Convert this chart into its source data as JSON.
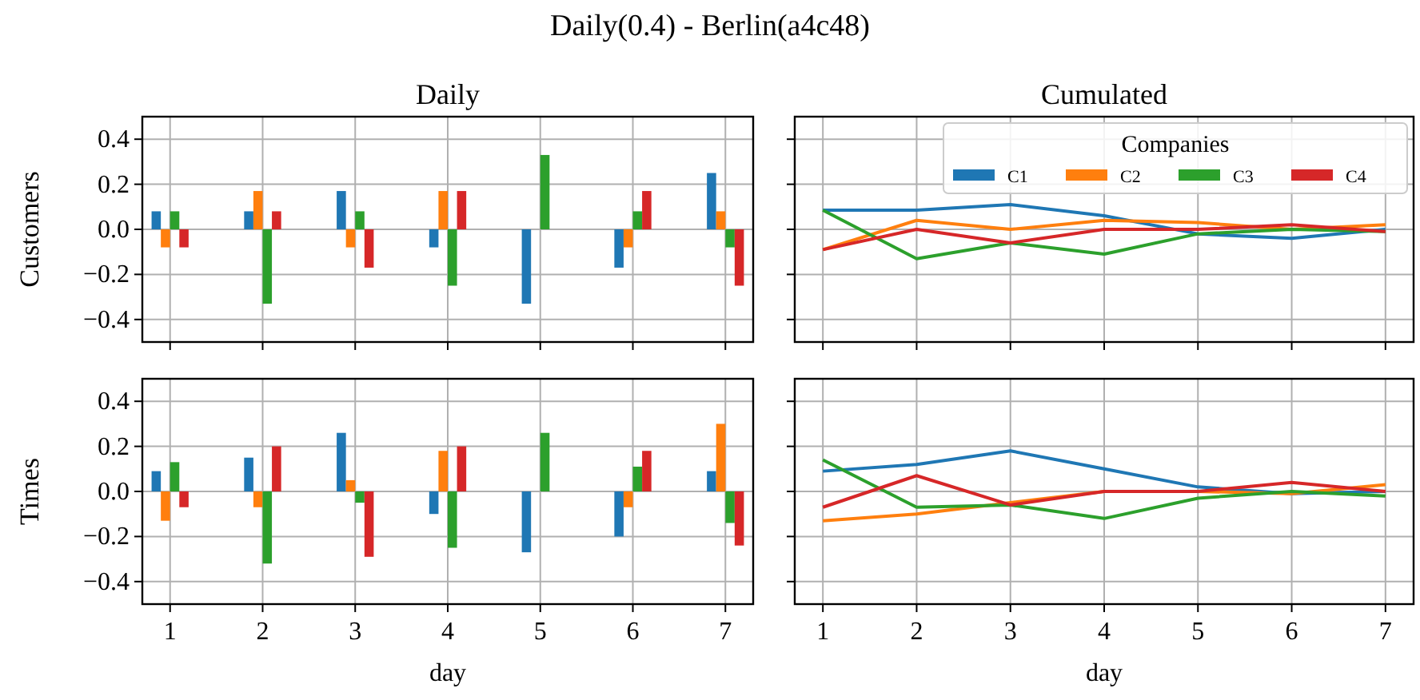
{
  "chart_data": [
    {
      "type": "bar",
      "title": "Daily",
      "annotations": [
        "Daily(0.4) - Berlin(a4c48)"
      ],
      "ylabel": "Customers",
      "x": [
        1,
        2,
        3,
        4,
        5,
        6,
        7
      ],
      "xlim": [
        0.7,
        7.3
      ],
      "xticks": [
        1,
        2,
        3,
        4,
        5,
        6,
        7
      ],
      "ylim": [
        -0.5,
        0.5
      ],
      "yticks": [
        {
          "value": -0.4,
          "label": "−0.4"
        },
        {
          "value": -0.2,
          "label": "−0.2"
        },
        {
          "value": 0,
          "label": "0.0"
        },
        {
          "value": 0.2,
          "label": "0.2"
        },
        {
          "value": 0.4,
          "label": "0.4"
        }
      ],
      "tick_labels": "y",
      "grid": true,
      "series": [
        {
          "color": "#1f77b4",
          "values": [
            0.08,
            0.08,
            0.17,
            -0.08,
            -0.33,
            -0.17,
            0.25
          ]
        },
        {
          "color": "#ff7f0e",
          "values": [
            -0.08,
            0.17,
            -0.08,
            0.17,
            0,
            -0.08,
            0.08
          ]
        },
        {
          "color": "#2ca02c",
          "values": [
            0.08,
            -0.33,
            0.08,
            -0.25,
            0.33,
            0.08,
            -0.08
          ]
        },
        {
          "color": "#d62728",
          "values": [
            -0.08,
            0.08,
            -0.17,
            0.17,
            0,
            0.17,
            -0.25
          ]
        }
      ]
    },
    {
      "type": "line",
      "title": "Cumulated",
      "x": [
        1,
        2,
        3,
        4,
        5,
        6,
        7
      ],
      "xlim": [
        0.7,
        7.3
      ],
      "xticks": [
        1,
        2,
        3,
        4,
        5,
        6,
        7
      ],
      "ylim": [
        -0.5,
        0.5
      ],
      "yticks": [
        {
          "value": -0.4,
          "label": null
        },
        {
          "value": -0.2,
          "label": null
        },
        {
          "value": 0,
          "label": null
        },
        {
          "value": 0.2,
          "label": null
        },
        {
          "value": 0.4,
          "label": null
        }
      ],
      "tick_labels": false,
      "grid": true,
      "legend": "top right",
      "legend_title": "Companies",
      "marker": "none",
      "series": [
        {
          "name": "C1",
          "color": "#1f77b4",
          "values": [
            0.085,
            0.085,
            0.11,
            0.06,
            -0.02,
            -0.04,
            0
          ]
        },
        {
          "name": "C2",
          "color": "#ff7f0e",
          "values": [
            -0.09,
            0.04,
            0,
            0.04,
            0.03,
            0,
            0.02
          ]
        },
        {
          "name": "C3",
          "color": "#2ca02c",
          "values": [
            0.085,
            -0.13,
            -0.06,
            -0.11,
            -0.02,
            0,
            -0.01
          ]
        },
        {
          "name": "C4",
          "color": "#d62728",
          "values": [
            -0.09,
            0,
            -0.06,
            0,
            0,
            0.02,
            -0.01
          ]
        }
      ]
    },
    {
      "type": "bar",
      "ylabel": "Times",
      "xlabel": "day",
      "x": [
        1,
        2,
        3,
        4,
        5,
        6,
        7
      ],
      "xlim": [
        0.7,
        7.3
      ],
      "xticks": [
        1,
        2,
        3,
        4,
        5,
        6,
        7
      ],
      "ylim": [
        -0.5,
        0.5
      ],
      "yticks": [
        {
          "value": -0.4,
          "label": "−0.4"
        },
        {
          "value": -0.2,
          "label": "−0.2"
        },
        {
          "value": 0,
          "label": "0.0"
        },
        {
          "value": 0.2,
          "label": "0.2"
        },
        {
          "value": 0.4,
          "label": "0.4"
        }
      ],
      "grid": true,
      "series": [
        {
          "color": "#1f77b4",
          "values": [
            0.09,
            0.15,
            0.26,
            -0.1,
            -0.27,
            -0.2,
            0.09
          ]
        },
        {
          "color": "#ff7f0e",
          "values": [
            -0.13,
            -0.07,
            0.05,
            0.18,
            0,
            -0.07,
            0.3
          ]
        },
        {
          "color": "#2ca02c",
          "values": [
            0.13,
            -0.32,
            -0.05,
            -0.25,
            0.26,
            0.11,
            -0.14
          ]
        },
        {
          "color": "#d62728",
          "values": [
            -0.07,
            0.2,
            -0.29,
            0.2,
            0,
            0.18,
            -0.24
          ]
        }
      ]
    },
    {
      "type": "line",
      "xlabel": "day",
      "x": [
        1,
        2,
        3,
        4,
        5,
        6,
        7
      ],
      "xlim": [
        0.7,
        7.3
      ],
      "xticks": [
        1,
        2,
        3,
        4,
        5,
        6,
        7
      ],
      "ylim": [
        -0.5,
        0.5
      ],
      "yticks": [
        {
          "value": -0.4,
          "label": null
        },
        {
          "value": -0.2,
          "label": null
        },
        {
          "value": 0,
          "label": null
        },
        {
          "value": 0.2,
          "label": null
        },
        {
          "value": 0.4,
          "label": null
        }
      ],
      "tick_labels": "x",
      "grid": true,
      "marker": "none",
      "series": [
        {
          "color": "#1f77b4",
          "values": [
            0.09,
            0.12,
            0.18,
            0.1,
            0.02,
            -0.01,
            0
          ]
        },
        {
          "color": "#ff7f0e",
          "values": [
            -0.13,
            -0.1,
            -0.05,
            0,
            0,
            -0.01,
            0.03
          ]
        },
        {
          "color": "#2ca02c",
          "values": [
            0.14,
            -0.07,
            -0.06,
            -0.12,
            -0.03,
            0,
            -0.02
          ]
        },
        {
          "color": "#d62728",
          "values": [
            -0.07,
            0.07,
            -0.06,
            0,
            0,
            0.04,
            0
          ]
        }
      ]
    }
  ]
}
